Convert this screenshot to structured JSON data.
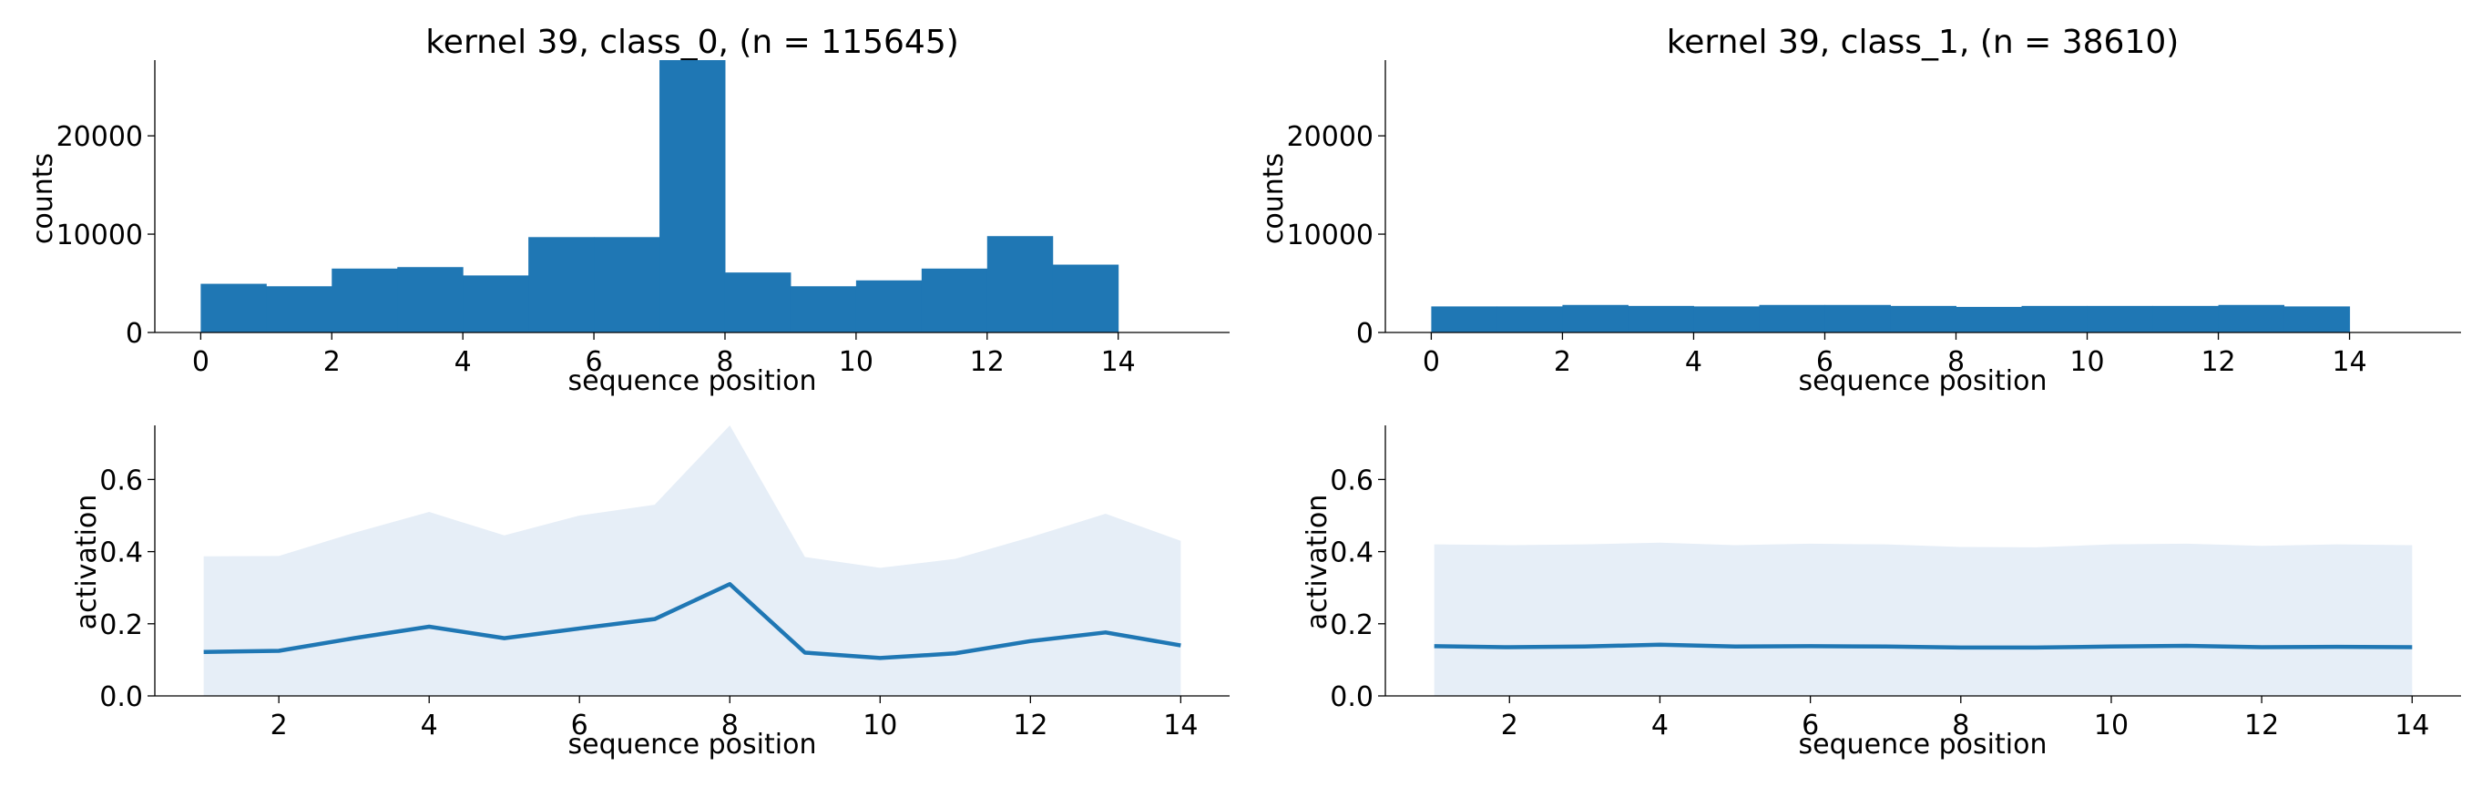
{
  "chart_data": [
    {
      "type": "bar",
      "title": "kernel 39, class_0, (n = 115645)",
      "xlabel": "sequence position",
      "ylabel": "counts",
      "bin_edges": [
        0,
        1,
        2,
        3,
        4,
        5,
        6,
        7,
        8,
        9,
        10,
        11,
        12,
        13,
        14
      ],
      "values": [
        4950,
        4700,
        6500,
        6650,
        5800,
        9700,
        9700,
        27700,
        6100,
        4700,
        5300,
        6500,
        9800,
        6900
      ],
      "xlim": [
        -0.7,
        15.7
      ],
      "ylim": [
        0,
        27700
      ],
      "xticks": [
        0,
        2,
        4,
        6,
        8,
        10,
        12,
        14
      ],
      "yticks": [
        0,
        10000,
        20000
      ],
      "grid": false,
      "color": "#1f77b4"
    },
    {
      "type": "bar",
      "title": "kernel 39, class_1, (n = 38610)",
      "xlabel": "sequence position",
      "ylabel": "counts",
      "bin_edges": [
        0,
        1,
        2,
        3,
        4,
        5,
        6,
        7,
        8,
        9,
        10,
        11,
        12,
        13,
        14
      ],
      "values": [
        2650,
        2650,
        2800,
        2700,
        2650,
        2800,
        2800,
        2700,
        2600,
        2700,
        2700,
        2700,
        2800,
        2650
      ],
      "xlim": [
        -0.7,
        15.7
      ],
      "ylim": [
        0,
        27700
      ],
      "xticks": [
        0,
        2,
        4,
        6,
        8,
        10,
        12,
        14
      ],
      "yticks": [
        0,
        10000,
        20000
      ],
      "grid": false,
      "color": "#1f77b4"
    },
    {
      "type": "line",
      "xlabel": "sequence position",
      "ylabel": "activation",
      "x": [
        1,
        2,
        3,
        4,
        5,
        6,
        7,
        8,
        9,
        10,
        11,
        12,
        13,
        14
      ],
      "series": [
        {
          "values": [
            0.122,
            0.125,
            0.16,
            0.192,
            0.16,
            0.187,
            0.213,
            0.31,
            0.12,
            0.105,
            0.118,
            0.152,
            0.176,
            0.14
          ],
          "band_upper": [
            0.387,
            0.388,
            0.452,
            0.51,
            0.445,
            0.5,
            0.53,
            0.75,
            0.385,
            0.355,
            0.38,
            0.44,
            0.505,
            0.43
          ]
        }
      ],
      "xlim": [
        0.35,
        14.65
      ],
      "ylim": [
        0,
        0.75
      ],
      "xticks": [
        2,
        4,
        6,
        8,
        10,
        12,
        14
      ],
      "yticks": [
        0.0,
        0.2,
        0.4,
        0.6
      ],
      "ytick_labels": [
        "0.0",
        "0.2",
        "0.4",
        "0.6"
      ],
      "grid": false,
      "color": "#1f77b4",
      "band_color": "#e6eef7"
    },
    {
      "type": "line",
      "xlabel": "sequence position",
      "ylabel": "activation",
      "x": [
        1,
        2,
        3,
        4,
        5,
        6,
        7,
        8,
        9,
        10,
        11,
        12,
        13,
        14
      ],
      "series": [
        {
          "values": [
            0.138,
            0.135,
            0.137,
            0.142,
            0.137,
            0.138,
            0.137,
            0.134,
            0.134,
            0.137,
            0.139,
            0.135,
            0.136,
            0.135
          ],
          "band_upper": [
            0.42,
            0.418,
            0.42,
            0.425,
            0.418,
            0.422,
            0.42,
            0.413,
            0.412,
            0.42,
            0.422,
            0.416,
            0.42,
            0.418
          ]
        }
      ],
      "xlim": [
        0.35,
        14.65
      ],
      "ylim": [
        0,
        0.75
      ],
      "xticks": [
        2,
        4,
        6,
        8,
        10,
        12,
        14
      ],
      "yticks": [
        0.0,
        0.2,
        0.4,
        0.6
      ],
      "ytick_labels": [
        "0.0",
        "0.2",
        "0.4",
        "0.6"
      ],
      "grid": false,
      "color": "#1f77b4",
      "band_color": "#e6eef7"
    }
  ]
}
